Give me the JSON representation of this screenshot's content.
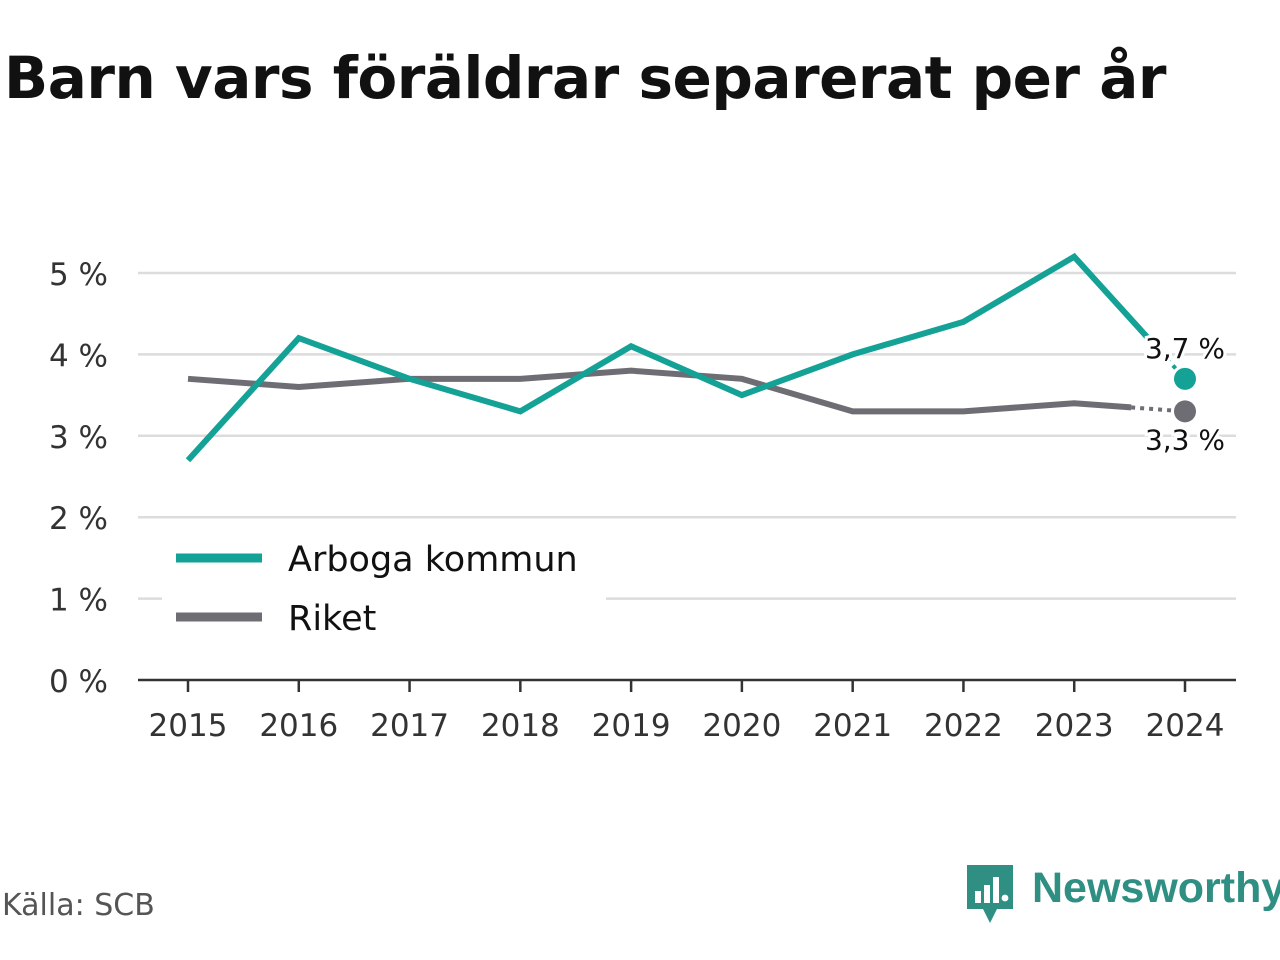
{
  "title": "Barn vars föräldrar separerat per år",
  "source": "Källa: SCB",
  "brand": {
    "name": "Newsworthy",
    "icon": "newsworthy-logo-icon",
    "color": "#2f8f83"
  },
  "chart_data": {
    "type": "line",
    "x": [
      "2015",
      "2016",
      "2017",
      "2018",
      "2019",
      "2020",
      "2021",
      "2022",
      "2023",
      "2024"
    ],
    "ylim": [
      0,
      5
    ],
    "yticks": [
      0,
      1,
      2,
      3,
      4,
      5
    ],
    "ytick_labels": [
      "0 %",
      "1 %",
      "2 %",
      "3 %",
      "4 %",
      "5 %"
    ],
    "grid": true,
    "legend_position": "bottom-left",
    "series": [
      {
        "name": "Arboga kommun",
        "color": "#14a196",
        "values": [
          2.7,
          4.2,
          3.7,
          3.3,
          4.1,
          3.5,
          4.0,
          4.4,
          5.2,
          3.7
        ],
        "end_label": "3,7 %"
      },
      {
        "name": "Riket",
        "color": "#6e6d74",
        "values": [
          3.7,
          3.6,
          3.7,
          3.7,
          3.8,
          3.7,
          3.3,
          3.3,
          3.4,
          3.3
        ],
        "end_label": "3,3 %"
      }
    ]
  }
}
